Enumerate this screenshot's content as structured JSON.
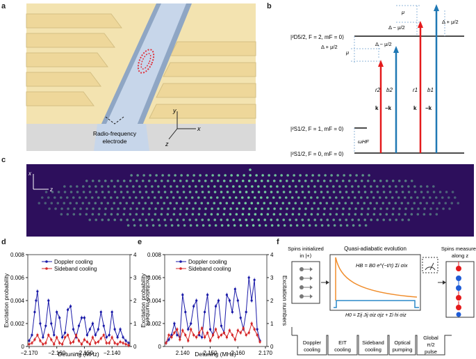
{
  "panel_labels": {
    "a": "a",
    "b": "b",
    "c": "c",
    "d": "d",
    "e": "e",
    "f": "f"
  },
  "panel_a": {
    "electrode_label_line1": "Radio-frequency",
    "electrode_label_line2": "electrode",
    "axis_y": "y",
    "axis_x": "x",
    "axis_z": "z"
  },
  "panel_b": {
    "level_d": "|²D5/2, F = 2, mF = 0⟩",
    "level_s1": "|²S1/2, F = 1, mF = 0⟩",
    "level_s0": "|²S1/2, F = 0, mF = 0⟩",
    "delta_plus_left": "Δ + μ/2",
    "delta_minus_left": "Δ − μ/2",
    "mu_left": "μ",
    "mu_top": "μ",
    "delta_minus_top": "Δ − μ/2",
    "delta_plus_right": "Δ + μ/2",
    "omega_hf": "ωHF",
    "beams": [
      {
        "name": "r2",
        "k": "k"
      },
      {
        "name": "b2",
        "k": "−k"
      },
      {
        "name": "r1",
        "k": "k"
      },
      {
        "name": "b1",
        "k": "−k"
      }
    ],
    "colors": {
      "red": "#e41a1c",
      "blue": "#1f78b4"
    }
  },
  "panel_c": {
    "axis_x": "x",
    "axis_z": "z"
  },
  "panel_d": {
    "chart_data": {
      "type": "line",
      "xlabel": "Detuning (MHz)",
      "ylabel": "Excitation probability",
      "ylabel_right": "Excitation numbers",
      "xlim": [
        -2.1705,
        -2.1335
      ],
      "ylim": [
        0,
        0.008
      ],
      "ylim_right": [
        0,
        4
      ],
      "xticks": [
        "−2.170",
        "−2.160",
        "−2.150",
        "−2.140"
      ],
      "yticks": [
        "0",
        "0.002",
        "0.004",
        "0.006",
        "0.008"
      ],
      "yticks_right": [
        "0",
        "1",
        "2",
        "3",
        "4"
      ],
      "series": [
        {
          "name": "Doppler cooling",
          "color": "#1a1aa8",
          "x": [
            -2.17,
            -2.169,
            -2.168,
            -2.1675,
            -2.167,
            -2.166,
            -2.165,
            -2.164,
            -2.163,
            -2.162,
            -2.161,
            -2.16,
            -2.159,
            -2.158,
            -2.157,
            -2.156,
            -2.155,
            -2.154,
            -2.153,
            -2.152,
            -2.151,
            -2.15,
            -2.149,
            -2.148,
            -2.147,
            -2.146,
            -2.145,
            -2.144,
            -2.143,
            -2.142,
            -2.141,
            -2.14,
            -2.139,
            -2.138,
            -2.137,
            -2.136,
            -2.135,
            -2.134
          ],
          "y": [
            0.0005,
            0.001,
            0.003,
            0.004,
            0.0048,
            0.002,
            0.0008,
            0.0018,
            0.004,
            0.002,
            0.001,
            0.003,
            0.0025,
            0.0008,
            0.0012,
            0.0032,
            0.0035,
            0.0015,
            0.0008,
            0.0018,
            0.0025,
            0.0025,
            0.001,
            0.0015,
            0.002,
            0.001,
            0.0015,
            0.003,
            0.0018,
            0.0008,
            0.001,
            0.003,
            0.0015,
            0.0008,
            0.0015,
            0.0008,
            0.0005,
            0.0003
          ]
        },
        {
          "name": "Sideband cooling",
          "color": "#d62728",
          "x": [
            -2.17,
            -2.169,
            -2.168,
            -2.167,
            -2.166,
            -2.165,
            -2.164,
            -2.163,
            -2.162,
            -2.161,
            -2.16,
            -2.159,
            -2.158,
            -2.157,
            -2.156,
            -2.155,
            -2.154,
            -2.153,
            -2.152,
            -2.151,
            -2.15,
            -2.149,
            -2.148,
            -2.147,
            -2.146,
            -2.145,
            -2.144,
            -2.143,
            -2.142,
            -2.141,
            -2.14,
            -2.139,
            -2.138,
            -2.137,
            -2.136,
            -2.135,
            -2.134
          ],
          "y": [
            0.0002,
            0.0003,
            0.0006,
            0.001,
            0.0005,
            0.0002,
            0.0003,
            0.001,
            0.0006,
            0.0002,
            0.0008,
            0.0003,
            0.0002,
            0.0008,
            0.001,
            0.0003,
            0.0004,
            0.001,
            0.0005,
            0.0002,
            0.0006,
            0.0004,
            0.0002,
            0.0008,
            0.0003,
            0.0004,
            0.0007,
            0.001,
            0.0003,
            0.0003,
            0.0008,
            0.0003,
            0.0002,
            0.0004,
            0.0003,
            0.0002,
            0.0001
          ]
        }
      ]
    }
  },
  "panel_e": {
    "chart_data": {
      "type": "line",
      "xlabel": "Detuning (MHz)",
      "ylabel": "Excitation probability",
      "ylabel_right": "Excitation numbers",
      "xlim": [
        2.1335,
        2.1705
      ],
      "ylim": [
        0,
        0.008
      ],
      "ylim_right": [
        0,
        4
      ],
      "xticks": [
        "2.140",
        "2.150",
        "2.160",
        "2.170"
      ],
      "yticks": [
        "0",
        "0.002",
        "0.004",
        "0.006",
        "0.008"
      ],
      "yticks_right": [
        "0",
        "1",
        "2",
        "3",
        "4"
      ],
      "series": [
        {
          "name": "Doppler cooling",
          "color": "#1a1aa8",
          "x": [
            2.134,
            2.135,
            2.136,
            2.137,
            2.138,
            2.139,
            2.14,
            2.141,
            2.142,
            2.143,
            2.144,
            2.145,
            2.146,
            2.147,
            2.148,
            2.149,
            2.15,
            2.151,
            2.152,
            2.153,
            2.154,
            2.155,
            2.156,
            2.157,
            2.158,
            2.159,
            2.16,
            2.161,
            2.162,
            2.163,
            2.164,
            2.165,
            2.166,
            2.167,
            2.168
          ],
          "y": [
            0.0003,
            0.0006,
            0.001,
            0.002,
            0.001,
            0.0008,
            0.0045,
            0.003,
            0.0015,
            0.002,
            0.0035,
            0.004,
            0.001,
            0.0008,
            0.003,
            0.0045,
            0.0015,
            0.001,
            0.0035,
            0.004,
            0.0018,
            0.0012,
            0.0045,
            0.004,
            0.003,
            0.005,
            0.004,
            0.0025,
            0.0015,
            0.003,
            0.006,
            0.004,
            0.0058,
            0.0015,
            0.0005
          ]
        },
        {
          "name": "Sideband cooling",
          "color": "#d62728",
          "x": [
            2.134,
            2.135,
            2.136,
            2.137,
            2.138,
            2.139,
            2.14,
            2.141,
            2.142,
            2.143,
            2.144,
            2.145,
            2.146,
            2.147,
            2.148,
            2.149,
            2.15,
            2.151,
            2.152,
            2.153,
            2.154,
            2.155,
            2.156,
            2.157,
            2.158,
            2.159,
            2.16,
            2.161,
            2.162,
            2.163,
            2.164,
            2.165,
            2.166,
            2.167,
            2.168
          ],
          "y": [
            0.0003,
            0.001,
            0.0008,
            0.0012,
            0.0015,
            0.0006,
            0.0014,
            0.001,
            0.0005,
            0.0015,
            0.001,
            0.0008,
            0.0012,
            0.0016,
            0.0008,
            0.0012,
            0.0005,
            0.001,
            0.0015,
            0.0008,
            0.001,
            0.0012,
            0.0008,
            0.0014,
            0.001,
            0.0006,
            0.0014,
            0.0012,
            0.0016,
            0.001,
            0.0012,
            0.002,
            0.0015,
            0.001,
            0.0004
          ]
        }
      ]
    }
  },
  "panel_f": {
    "spins_init_line1": "Spins initialized",
    "spins_init_line2": "in |+⟩",
    "evolution_title": "Quasi-adiabatic evolution",
    "hb_label": "HB = B0 e^(−t/τ) Σi σix",
    "h0_label": "H0 = Σij Jij σiz σjz + Σi hi σiz",
    "measured_line1": "Spins measured",
    "measured_line2": "along z",
    "steps": [
      {
        "line1": "Doppler",
        "line2": "cooling"
      },
      {
        "line1": "EIT",
        "line2": "cooling"
      },
      {
        "line1": "Sideband",
        "line2": "cooling"
      },
      {
        "line1": "Optical",
        "line2": "pumping"
      },
      {
        "line1": "Global",
        "line2": "π/2",
        "line3": "pulse"
      }
    ]
  }
}
